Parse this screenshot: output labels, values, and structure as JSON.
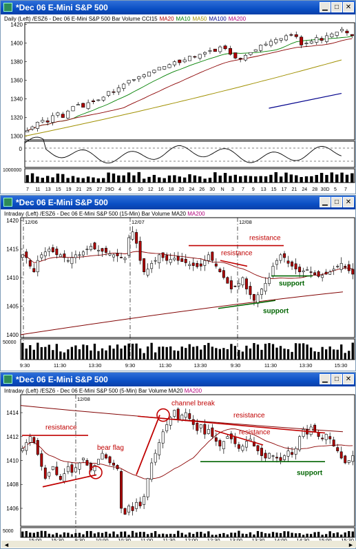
{
  "windows": [
    {
      "title": "*Dec 06  E-Mini S&P 500",
      "header": {
        "label_prefix": "Daily  (Left)   /ESZ6 - Dec 06  E-Mini S&P 500  Bar  Volume ",
        "ind1": "CCI15",
        "ind2": "MA20",
        "ind3": "MA10",
        "ind4": "MA50",
        "ind5": "MA100",
        "ind6": "MA200"
      }
    },
    {
      "title": "*Dec 06  E-Mini S&P 500",
      "header": {
        "label_prefix": "Intraday  (Left)   /ESZ6 - Dec 06  E-Mini S&P 500 (15-Min)  Bar  Volume  MA20 ",
        "ind1": "MA200"
      }
    },
    {
      "title": "*Dec 06  E-Mini S&P 500",
      "header": {
        "label_prefix": "Intraday  (Left)   /ESZ6 - Dec 06  E-Mini S&P 500 (5-Min)  Bar  Volume  MA20 ",
        "ind1": "MA200"
      }
    }
  ],
  "colors": {
    "title_bar": "#0a4fc4",
    "up": "#ffffff",
    "down": "#b00000",
    "ma20": "#8b0000",
    "ma10": "#008000",
    "ma50": "#a09000",
    "ma100": "#00008b",
    "ma200": "#800000",
    "annotation": "#c00000",
    "support": "#006400"
  },
  "chart_data": [
    {
      "type": "candlestick",
      "yticks": [
        "1420",
        "1400",
        "1380",
        "1360",
        "1340",
        "1320",
        "1300"
      ],
      "ylim": [
        1296,
        1422
      ],
      "oscillator_tick": "0",
      "volume_tick": "1000000",
      "xticks": [
        "7",
        "11",
        "13",
        "15",
        "19",
        "21",
        "25",
        "27",
        "29O",
        "4",
        "6",
        "10",
        "12",
        "16",
        "18",
        "20",
        "24",
        "26",
        "30",
        "N",
        "3",
        "7",
        "9",
        "13",
        "15",
        "17",
        "21",
        "24",
        "28",
        "30D",
        "5",
        "7"
      ],
      "close": [
        1306,
        1310,
        1315,
        1317,
        1315,
        1322,
        1325,
        1320,
        1327,
        1332,
        1334,
        1331,
        1336,
        1337,
        1339,
        1342,
        1348,
        1347,
        1352,
        1356,
        1360,
        1361,
        1364,
        1366,
        1369,
        1371,
        1374,
        1375,
        1377,
        1380,
        1379,
        1382,
        1386,
        1385,
        1388,
        1390,
        1392,
        1391,
        1396,
        1394,
        1388,
        1384,
        1383,
        1387,
        1390,
        1393,
        1398,
        1399,
        1402,
        1404,
        1405,
        1408,
        1409,
        1407,
        1398,
        1400,
        1402,
        1406,
        1403,
        1408,
        1410,
        1412,
        1415,
        1411,
        1408
      ],
      "ma100": [
        [
          0.74,
          1330
        ],
        [
          1.0,
          1346
        ]
      ],
      "ma50_start": 1300,
      "ma50_end": 1382
    },
    {
      "type": "candlestick",
      "yticks": [
        "1420",
        "1415",
        "1410",
        "1405",
        "1400"
      ],
      "ylim": [
        1399.5,
        1420.5
      ],
      "date_labels": [
        "12/06",
        "12/07",
        "12/08"
      ],
      "volume_tick": "50000",
      "xticks": [
        "9:30",
        "11:30",
        "13:30",
        "9:30",
        "11:30",
        "13:30",
        "9:30",
        "11:30",
        "13:30",
        "15:30"
      ],
      "close": [
        1414,
        1413.5,
        1412,
        1411,
        1413,
        1414,
        1414.5,
        1415,
        1414.5,
        1414,
        1414,
        1413.5,
        1413,
        1413.5,
        1414,
        1414,
        1414.5,
        1415,
        1415.5,
        1415,
        1414.8,
        1414.6,
        1414.4,
        1414.2,
        1414,
        1413.8,
        1413.5,
        1413.4,
        1417,
        1418,
        1416,
        1413,
        1411,
        1411.5,
        1412.5,
        1413,
        1414,
        1413.5,
        1413,
        1413.2,
        1413.4,
        1413,
        1412.8,
        1412.6,
        1412.3,
        1412.1,
        1411.9,
        1412,
        1413,
        1414,
        1413,
        1412,
        1411,
        1410,
        1409,
        1408,
        1408.5,
        1409,
        1410,
        1408,
        1407,
        1406,
        1407,
        1408,
        1409,
        1410,
        1412,
        1413,
        1414,
        1413.5,
        1412.5,
        1412,
        1411.5,
        1411,
        1411.2,
        1411.4,
        1411,
        1410.5,
        1410.2,
        1410.4,
        1410.6,
        1411,
        1411.5,
        1412,
        1412.5,
        1411.8,
        1411.2,
        1410.6
      ],
      "ma200": [
        1400,
        1407.5
      ],
      "annotations": [
        {
          "text": "resistance",
          "color": "annotation"
        },
        {
          "text": "resistance",
          "color": "annotation"
        },
        {
          "text": "support",
          "color": "support"
        },
        {
          "text": "support",
          "color": "support"
        }
      ]
    },
    {
      "type": "candlestick",
      "yticks": [
        "1414",
        "1412",
        "1410",
        "1408",
        "1406"
      ],
      "ylim": [
        1404.5,
        1415.5
      ],
      "date_labels": [
        "12/08"
      ],
      "volume_tick": "5000",
      "xticks": [
        "15:00",
        "15:30",
        "9:30",
        "10:00",
        "10:30",
        "11:00",
        "11:30",
        "12:00",
        "12:30",
        "13:00",
        "13:30",
        "14:00",
        "14:30",
        "15:00",
        "15:30"
      ],
      "close": [
        1411,
        1411.5,
        1412,
        1411.5,
        1410.5,
        1409.5,
        1408.5,
        1409,
        1409.5,
        1408.8,
        1408.4,
        1408.9,
        1409.5,
        1409,
        1409.4,
        1409.8,
        1410.2,
        1409.6,
        1409.2,
        1409.6,
        1410.1,
        1410.6,
        1410.2,
        1409.8,
        1409.6,
        1409.3,
        1406,
        1405.5,
        1406.2,
        1405.8,
        1406.5,
        1406.2,
        1407,
        1408.5,
        1409.8,
        1410.6,
        1411.5,
        1412.4,
        1413,
        1413.6,
        1414.2,
        1413.4,
        1413.8,
        1414,
        1413.5,
        1413,
        1412.5,
        1413,
        1412.2,
        1412.6,
        1412,
        1411.6,
        1411.2,
        1411.6,
        1412,
        1411.8,
        1411.4,
        1411,
        1411.2,
        1411.6,
        1411.8,
        1411.2,
        1410.8,
        1410.4,
        1410.2,
        1410.6,
        1410.4,
        1410.2,
        1410,
        1410.4,
        1410.8,
        1410.5,
        1411,
        1412,
        1412.6,
        1412.2,
        1412.8,
        1412.4,
        1412,
        1411.8,
        1412.2,
        1411.8,
        1411.2,
        1410.8,
        1410.2,
        1409.8,
        1410,
        1410.4
      ],
      "annotations": [
        {
          "text": "resistance",
          "color": "annotation"
        },
        {
          "text": "bear flag",
          "color": "annotation"
        },
        {
          "text": "channel break",
          "color": "annotation"
        },
        {
          "text": "resistance",
          "color": "annotation"
        },
        {
          "text": "resistance",
          "color": "annotation"
        },
        {
          "text": "support",
          "color": "support"
        }
      ]
    }
  ]
}
